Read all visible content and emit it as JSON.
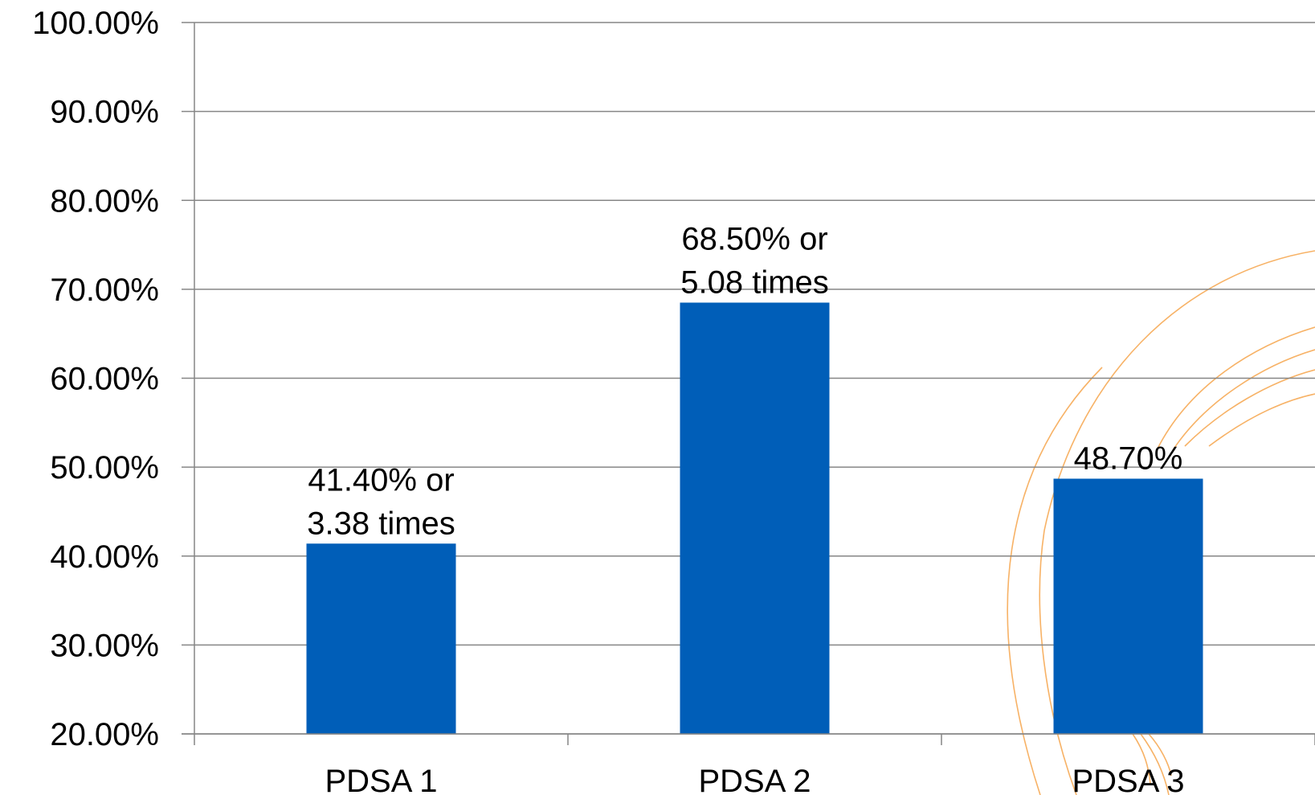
{
  "chart_data": {
    "type": "bar",
    "categories": [
      "PDSA 1",
      "PDSA 2",
      "PDSA 3"
    ],
    "values": [
      41.4,
      68.5,
      48.7
    ],
    "data_labels": [
      [
        "41.40% or",
        "3.38 times"
      ],
      [
        "68.50% or",
        "5.08 times"
      ],
      [
        "48.70%"
      ]
    ],
    "y_ticks": [
      "20.00%",
      "30.00%",
      "40.00%",
      "50.00%",
      "60.00%",
      "70.00%",
      "80.00%",
      "90.00%",
      "100.00%"
    ],
    "ylim": [
      20,
      100
    ],
    "y_unit": "%",
    "title": "",
    "xlabel": "",
    "ylabel": "",
    "grid": true,
    "legend": "none",
    "bar_color": "#005EB8",
    "gridline_color": "#868686",
    "decoration_color": "#F7B266"
  }
}
